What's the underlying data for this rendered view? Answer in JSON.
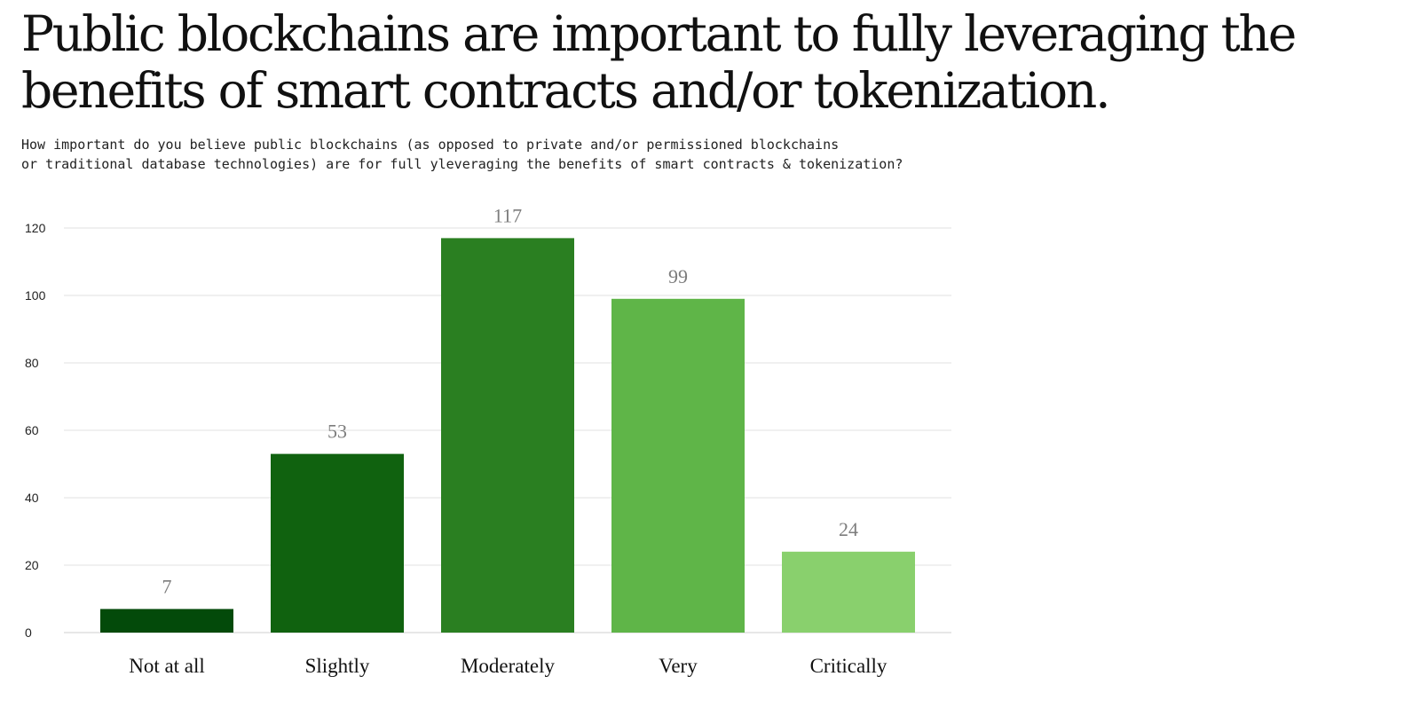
{
  "title": "Public blockchains are important to fully leveraging the benefits of smart contracts and/or tokenization.",
  "subtitle": "How important do you believe public blockchains (as opposed to private and/or permissioned blockchains\nor traditional database technologies) are for full yleveraging the benefits of smart contracts & tokenization?",
  "chart_data": {
    "type": "bar",
    "categories": [
      "Not at all",
      "Slightly",
      "Moderately",
      "Very",
      "Critically"
    ],
    "values": [
      7,
      53,
      117,
      99,
      24
    ],
    "data_labels": [
      "7",
      "53",
      "117",
      "99",
      "24"
    ],
    "colors": [
      "#034a0a",
      "#10620f",
      "#2a7f21",
      "#5fb548",
      "#89d06d"
    ],
    "ylim": [
      0,
      120
    ],
    "yticks": [
      0,
      20,
      40,
      60,
      80,
      100,
      120
    ],
    "ytick_labels": [
      "0",
      "20",
      "40",
      "60",
      "80",
      "100",
      "120"
    ],
    "grid": true,
    "legend": "none",
    "xlabel": "",
    "ylabel": ""
  }
}
